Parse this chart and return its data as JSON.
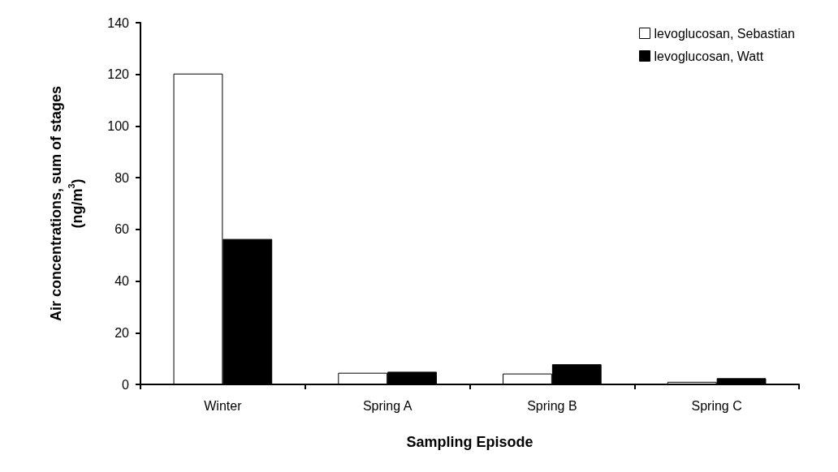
{
  "chart_data": {
    "type": "bar",
    "xlabel": "Sampling Episode",
    "ylabel": "Air concentrations, sum of stages (ng/m$^{3}$)",
    "categories": [
      "Winter",
      "Spring A",
      "Spring B",
      "Spring C"
    ],
    "series": [
      {
        "name": "levoglucosan, Sebastian",
        "color": "#ffffff",
        "values": [
          120.3,
          4.5,
          4.2,
          1
        ]
      },
      {
        "name": "levoglucosan, Watt",
        "color": "#000000",
        "values": [
          56.3,
          4.9,
          7.8,
          2.4
        ]
      }
    ],
    "ylim": [
      0,
      140
    ],
    "yticks": [
      0,
      20,
      40,
      60,
      80,
      100,
      120,
      140
    ],
    "grid": false,
    "legend": "top right"
  }
}
